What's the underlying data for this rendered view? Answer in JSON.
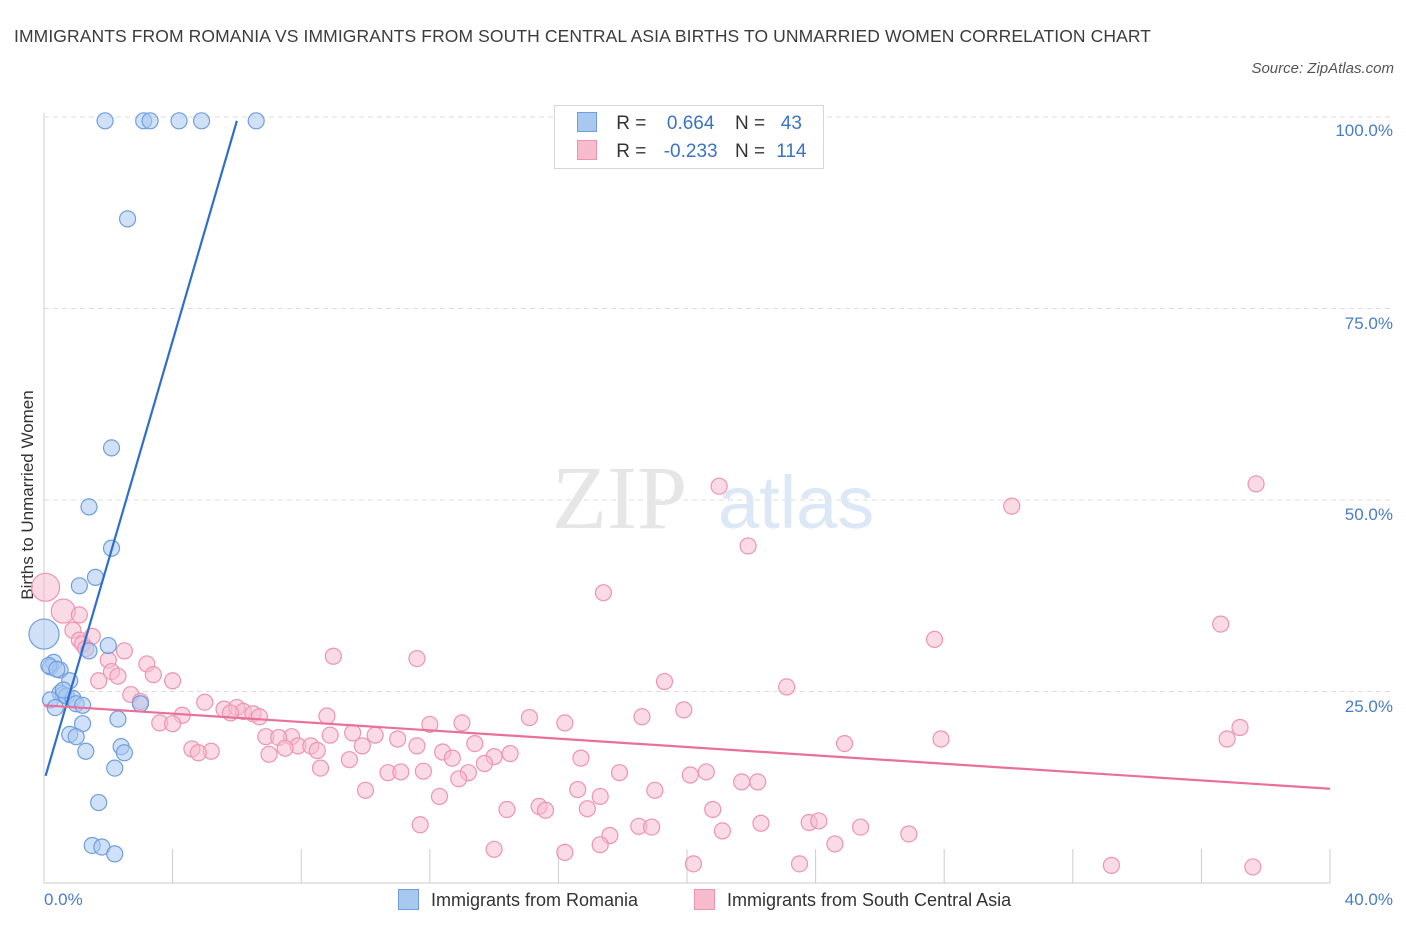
{
  "title": "IMMIGRANTS FROM ROMANIA VS IMMIGRANTS FROM SOUTH CENTRAL ASIA BIRTHS TO UNMARRIED WOMEN CORRELATION CHART",
  "source": "Source: ZipAtlas.com",
  "watermark": {
    "zip": "ZIP",
    "atlas": "atlas"
  },
  "colors": {
    "blue_fill": "#a9c8f0",
    "blue_stroke": "#6f9ee0",
    "blue_line": "#2f6fcc",
    "pink_fill": "#f6bccd",
    "pink_stroke": "#ee94b0",
    "pink_line": "#e8709a",
    "axis_text": "#4a7cc7",
    "grid": "#dddddd"
  },
  "stats": [
    {
      "r_label": "R =",
      "r_value": "0.664",
      "n_label": "N =",
      "n_value": "43"
    },
    {
      "r_label": "R =",
      "r_value": "-0.233",
      "n_label": "N =",
      "n_value": "114"
    }
  ],
  "legend": [
    {
      "label": "Immigrants from Romania"
    },
    {
      "label": "Immigrants from South Central Asia"
    }
  ],
  "chart_data": {
    "type": "scatter",
    "title": "IMMIGRANTS FROM ROMANIA VS IMMIGRANTS FROM SOUTH CENTRAL ASIA BIRTHS TO UNMARRIED WOMEN CORRELATION CHART",
    "xlabel": "",
    "ylabel": "Births to Unmarried Women",
    "xlim": [
      0,
      40
    ],
    "ylim": [
      0,
      100
    ],
    "x_tick_labels": [
      "0.0%",
      "40.0%"
    ],
    "y_ticks": [
      25,
      50,
      75,
      100
    ],
    "y_tick_labels": [
      "25.0%",
      "50.0%",
      "75.0%",
      "100.0%"
    ],
    "grid": true,
    "series": [
      {
        "name": "Immigrants from Romania",
        "color": "blue",
        "trend": {
          "x": [
            0.05,
            6.0
          ],
          "y": [
            14,
            99.5
          ]
        },
        "points": [
          {
            "x": 1.9,
            "y": 99.5
          },
          {
            "x": 3.1,
            "y": 99.5
          },
          {
            "x": 3.3,
            "y": 99.5
          },
          {
            "x": 4.2,
            "y": 99.5
          },
          {
            "x": 4.9,
            "y": 99.5
          },
          {
            "x": 6.6,
            "y": 99.5
          },
          {
            "x": 2.6,
            "y": 86.7
          },
          {
            "x": 2.1,
            "y": 56.8
          },
          {
            "x": 1.4,
            "y": 49.1
          },
          {
            "x": 2.1,
            "y": 43.7
          },
          {
            "x": 1.6,
            "y": 39.9
          },
          {
            "x": 1.1,
            "y": 38.8
          },
          {
            "x": 0.0,
            "y": 32.5,
            "s": 15
          },
          {
            "x": 1.4,
            "y": 30.3
          },
          {
            "x": 2.0,
            "y": 31.0
          },
          {
            "x": 0.3,
            "y": 28.8
          },
          {
            "x": 0.2,
            "y": 28.2
          },
          {
            "x": 0.5,
            "y": 27.8
          },
          {
            "x": 0.8,
            "y": 26.4
          },
          {
            "x": 0.5,
            "y": 24.8
          },
          {
            "x": 0.6,
            "y": 24.6
          },
          {
            "x": 0.7,
            "y": 24.4
          },
          {
            "x": 0.9,
            "y": 24.1
          },
          {
            "x": 0.2,
            "y": 23.9
          },
          {
            "x": 1.0,
            "y": 23.4
          },
          {
            "x": 1.2,
            "y": 23.2
          },
          {
            "x": 3.0,
            "y": 23.4
          },
          {
            "x": 0.35,
            "y": 22.9
          },
          {
            "x": 2.3,
            "y": 21.4
          },
          {
            "x": 1.2,
            "y": 20.8
          },
          {
            "x": 0.8,
            "y": 19.4
          },
          {
            "x": 1.0,
            "y": 19.1
          },
          {
            "x": 2.4,
            "y": 17.8
          },
          {
            "x": 1.3,
            "y": 17.2
          },
          {
            "x": 2.5,
            "y": 17.0
          },
          {
            "x": 2.2,
            "y": 15.0
          },
          {
            "x": 1.7,
            "y": 10.5
          },
          {
            "x": 1.5,
            "y": 4.9
          },
          {
            "x": 1.8,
            "y": 4.7
          },
          {
            "x": 2.2,
            "y": 3.8
          },
          {
            "x": 0.6,
            "y": 25.2
          },
          {
            "x": 0.15,
            "y": 28.4
          },
          {
            "x": 0.4,
            "y": 27.9
          }
        ]
      },
      {
        "name": "Immigrants from South Central Asia",
        "color": "pink",
        "trend": {
          "x": [
            0.0,
            40.0
          ],
          "y": [
            23.2,
            12.3
          ]
        },
        "points": [
          {
            "x": 0.05,
            "y": 38.6,
            "s": 14
          },
          {
            "x": 0.6,
            "y": 35.5,
            "s": 12
          },
          {
            "x": 1.1,
            "y": 35.0
          },
          {
            "x": 0.9,
            "y": 33.0
          },
          {
            "x": 1.1,
            "y": 31.7
          },
          {
            "x": 1.2,
            "y": 31.2
          },
          {
            "x": 1.5,
            "y": 32.2
          },
          {
            "x": 2.5,
            "y": 30.3
          },
          {
            "x": 1.3,
            "y": 30.6
          },
          {
            "x": 2.0,
            "y": 29.1
          },
          {
            "x": 3.2,
            "y": 28.6
          },
          {
            "x": 2.1,
            "y": 27.6
          },
          {
            "x": 3.4,
            "y": 27.2
          },
          {
            "x": 2.3,
            "y": 27.0
          },
          {
            "x": 1.7,
            "y": 26.4
          },
          {
            "x": 4.0,
            "y": 26.4
          },
          {
            "x": 2.7,
            "y": 24.6
          },
          {
            "x": 3.0,
            "y": 23.7
          },
          {
            "x": 5.0,
            "y": 23.6
          },
          {
            "x": 5.6,
            "y": 22.7
          },
          {
            "x": 6.0,
            "y": 22.9
          },
          {
            "x": 6.2,
            "y": 22.4
          },
          {
            "x": 6.5,
            "y": 22.1
          },
          {
            "x": 5.8,
            "y": 22.2
          },
          {
            "x": 4.3,
            "y": 21.9
          },
          {
            "x": 6.7,
            "y": 21.7
          },
          {
            "x": 3.6,
            "y": 20.9
          },
          {
            "x": 4.0,
            "y": 20.8
          },
          {
            "x": 8.8,
            "y": 21.8
          },
          {
            "x": 12.0,
            "y": 20.7
          },
          {
            "x": 13.0,
            "y": 20.9
          },
          {
            "x": 15.1,
            "y": 21.6
          },
          {
            "x": 16.2,
            "y": 20.9
          },
          {
            "x": 9.6,
            "y": 19.6
          },
          {
            "x": 6.9,
            "y": 19.1
          },
          {
            "x": 7.7,
            "y": 19.1
          },
          {
            "x": 7.3,
            "y": 19.0
          },
          {
            "x": 8.9,
            "y": 19.3
          },
          {
            "x": 10.3,
            "y": 19.3
          },
          {
            "x": 11.0,
            "y": 18.8
          },
          {
            "x": 13.4,
            "y": 18.2
          },
          {
            "x": 4.6,
            "y": 17.5
          },
          {
            "x": 5.2,
            "y": 17.2
          },
          {
            "x": 4.8,
            "y": 17.0
          },
          {
            "x": 7.9,
            "y": 17.9
          },
          {
            "x": 8.3,
            "y": 17.9
          },
          {
            "x": 8.5,
            "y": 17.3
          },
          {
            "x": 7.5,
            "y": 17.6
          },
          {
            "x": 7.0,
            "y": 16.8
          },
          {
            "x": 9.9,
            "y": 17.9
          },
          {
            "x": 11.6,
            "y": 17.9
          },
          {
            "x": 12.4,
            "y": 17.1
          },
          {
            "x": 14.0,
            "y": 16.5
          },
          {
            "x": 14.5,
            "y": 16.9
          },
          {
            "x": 12.7,
            "y": 16.3
          },
          {
            "x": 13.7,
            "y": 15.6
          },
          {
            "x": 8.6,
            "y": 15.0
          },
          {
            "x": 9.5,
            "y": 16.1
          },
          {
            "x": 16.7,
            "y": 16.3
          },
          {
            "x": 24.9,
            "y": 18.2
          },
          {
            "x": 27.9,
            "y": 18.8
          },
          {
            "x": 36.8,
            "y": 18.8
          },
          {
            "x": 37.2,
            "y": 20.3
          },
          {
            "x": 10.7,
            "y": 14.4
          },
          {
            "x": 11.1,
            "y": 14.5
          },
          {
            "x": 11.8,
            "y": 14.6
          },
          {
            "x": 13.2,
            "y": 14.4
          },
          {
            "x": 12.9,
            "y": 13.6
          },
          {
            "x": 17.9,
            "y": 14.4
          },
          {
            "x": 20.1,
            "y": 14.1
          },
          {
            "x": 20.6,
            "y": 14.5
          },
          {
            "x": 21.7,
            "y": 13.2
          },
          {
            "x": 22.2,
            "y": 13.2
          },
          {
            "x": 10.0,
            "y": 12.1
          },
          {
            "x": 12.3,
            "y": 11.3
          },
          {
            "x": 16.6,
            "y": 12.2
          },
          {
            "x": 17.3,
            "y": 11.3
          },
          {
            "x": 19.0,
            "y": 12.1
          },
          {
            "x": 14.4,
            "y": 9.6
          },
          {
            "x": 15.4,
            "y": 10.0
          },
          {
            "x": 15.6,
            "y": 9.5
          },
          {
            "x": 16.9,
            "y": 9.7
          },
          {
            "x": 20.8,
            "y": 9.6
          },
          {
            "x": 11.7,
            "y": 7.6
          },
          {
            "x": 17.6,
            "y": 6.2
          },
          {
            "x": 18.5,
            "y": 7.4
          },
          {
            "x": 18.9,
            "y": 7.3
          },
          {
            "x": 21.1,
            "y": 6.8
          },
          {
            "x": 22.3,
            "y": 7.8
          },
          {
            "x": 23.8,
            "y": 7.9
          },
          {
            "x": 24.1,
            "y": 8.1
          },
          {
            "x": 25.4,
            "y": 7.3
          },
          {
            "x": 26.9,
            "y": 6.4
          },
          {
            "x": 17.3,
            "y": 5.0
          },
          {
            "x": 24.6,
            "y": 5.1
          },
          {
            "x": 14.0,
            "y": 4.4
          },
          {
            "x": 16.2,
            "y": 4.0
          },
          {
            "x": 20.2,
            "y": 2.5
          },
          {
            "x": 23.5,
            "y": 2.5
          },
          {
            "x": 33.2,
            "y": 2.3
          },
          {
            "x": 37.6,
            "y": 2.1
          },
          {
            "x": 21.0,
            "y": 51.8
          },
          {
            "x": 30.1,
            "y": 49.2
          },
          {
            "x": 37.7,
            "y": 52.1
          },
          {
            "x": 21.9,
            "y": 44.0
          },
          {
            "x": 17.4,
            "y": 37.9
          },
          {
            "x": 36.6,
            "y": 33.8
          },
          {
            "x": 27.7,
            "y": 31.8
          },
          {
            "x": 9.0,
            "y": 29.6
          },
          {
            "x": 11.6,
            "y": 29.3
          },
          {
            "x": 19.3,
            "y": 26.3
          },
          {
            "x": 23.1,
            "y": 25.6
          },
          {
            "x": 19.9,
            "y": 22.6
          },
          {
            "x": 18.6,
            "y": 21.7
          }
        ]
      }
    ]
  }
}
